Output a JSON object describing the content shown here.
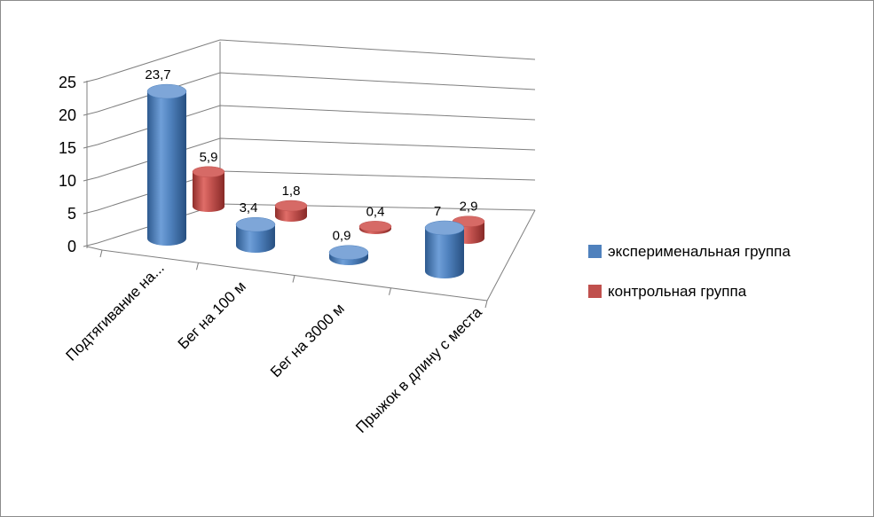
{
  "chart_data": {
    "type": "bar",
    "style": "3d-cylinder",
    "categories": [
      "Подтягивание на...",
      "Бег на 100 м",
      "Бег на 3000 м",
      "Прыжок в длину с места"
    ],
    "series": [
      {
        "name": "эксперименальная группа",
        "values": [
          23.7,
          3.4,
          0.9,
          7
        ],
        "labels": [
          "23,7",
          "3,4",
          "0,9",
          "7"
        ],
        "color": "#4f81bd"
      },
      {
        "name": "контрольная группа",
        "values": [
          5.9,
          1.8,
          0.4,
          2.9
        ],
        "labels": [
          "5,9",
          "1,8",
          "0,4",
          "2,9"
        ],
        "color": "#c0504d"
      }
    ],
    "yticks": [
      "0",
      "5",
      "10",
      "15",
      "20",
      "25"
    ],
    "ylim": [
      0,
      25
    ],
    "grid": true,
    "legend_position": "right"
  }
}
